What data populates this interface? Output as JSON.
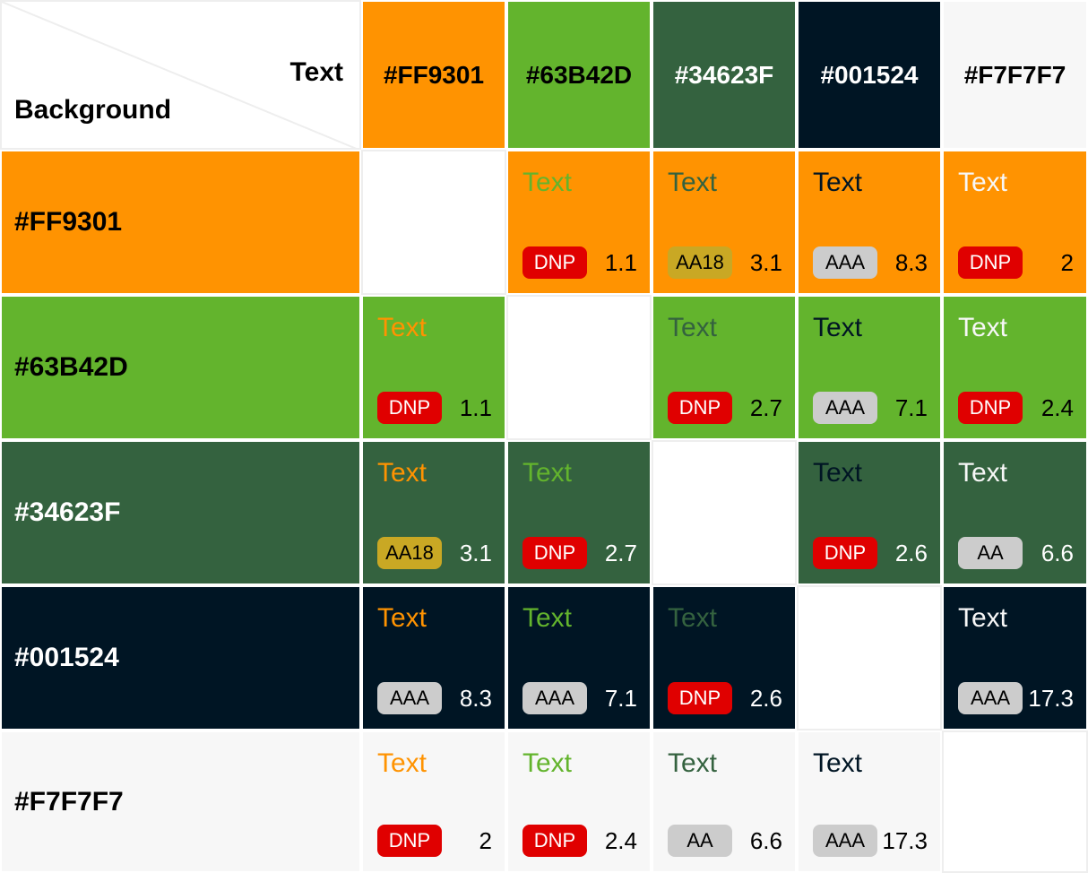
{
  "corner": {
    "text_label": "Text",
    "background_label": "Background"
  },
  "colors": [
    "#FF9301",
    "#63B42D",
    "#34623F",
    "#001524",
    "#F7F7F7"
  ],
  "column_headers": [
    {
      "label": "#FF9301",
      "bg": "#FF9301",
      "fg": "#000000"
    },
    {
      "label": "#63B42D",
      "bg": "#63B42D",
      "fg": "#000000"
    },
    {
      "label": "#34623F",
      "bg": "#34623F",
      "fg": "#FFFFFF"
    },
    {
      "label": "#001524",
      "bg": "#001524",
      "fg": "#FFFFFF"
    },
    {
      "label": "#F7F7F7",
      "bg": "#F7F7F7",
      "fg": "#000000"
    }
  ],
  "rows": [
    {
      "label": "#FF9301",
      "bg": "#FF9301",
      "label_color": "#000000",
      "ratio_color": "#000000",
      "cells": [
        null,
        {
          "sample": "Text",
          "rating": "DNP",
          "ratio": "1.1"
        },
        {
          "sample": "Text",
          "rating": "AA18",
          "ratio": "3.1"
        },
        {
          "sample": "Text",
          "rating": "AAA",
          "ratio": "8.3"
        },
        {
          "sample": "Text",
          "rating": "DNP",
          "ratio": "2"
        }
      ]
    },
    {
      "label": "#63B42D",
      "bg": "#63B42D",
      "label_color": "#000000",
      "ratio_color": "#000000",
      "cells": [
        {
          "sample": "Text",
          "rating": "DNP",
          "ratio": "1.1"
        },
        null,
        {
          "sample": "Text",
          "rating": "DNP",
          "ratio": "2.7"
        },
        {
          "sample": "Text",
          "rating": "AAA",
          "ratio": "7.1"
        },
        {
          "sample": "Text",
          "rating": "DNP",
          "ratio": "2.4"
        }
      ]
    },
    {
      "label": "#34623F",
      "bg": "#34623F",
      "label_color": "#FFFFFF",
      "ratio_color": "#FFFFFF",
      "cells": [
        {
          "sample": "Text",
          "rating": "AA18",
          "ratio": "3.1"
        },
        {
          "sample": "Text",
          "rating": "DNP",
          "ratio": "2.7"
        },
        null,
        {
          "sample": "Text",
          "rating": "DNP",
          "ratio": "2.6"
        },
        {
          "sample": "Text",
          "rating": "AA",
          "ratio": "6.6"
        }
      ]
    },
    {
      "label": "#001524",
      "bg": "#001524",
      "label_color": "#FFFFFF",
      "ratio_color": "#FFFFFF",
      "cells": [
        {
          "sample": "Text",
          "rating": "AAA",
          "ratio": "8.3"
        },
        {
          "sample": "Text",
          "rating": "AAA",
          "ratio": "7.1"
        },
        {
          "sample": "Text",
          "rating": "DNP",
          "ratio": "2.6"
        },
        null,
        {
          "sample": "Text",
          "rating": "AAA",
          "ratio": "17.3"
        }
      ]
    },
    {
      "label": "#F7F7F7",
      "bg": "#F7F7F7",
      "label_color": "#000000",
      "ratio_color": "#000000",
      "cells": [
        {
          "sample": "Text",
          "rating": "DNP",
          "ratio": "2"
        },
        {
          "sample": "Text",
          "rating": "DNP",
          "ratio": "2.4"
        },
        {
          "sample": "Text",
          "rating": "AA",
          "ratio": "6.6"
        },
        {
          "sample": "Text",
          "rating": "AAA",
          "ratio": "17.3"
        },
        null
      ]
    }
  ],
  "rating_styles": {
    "DNP": {
      "bg": "#E00000",
      "fg": "#FFFFFF"
    },
    "AA18": {
      "bg": "#C9A824",
      "fg": "#000000"
    },
    "AA": {
      "bg": "#CCCCCC",
      "fg": "#000000"
    },
    "AAA": {
      "bg": "#CCCCCC",
      "fg": "#000000"
    }
  }
}
